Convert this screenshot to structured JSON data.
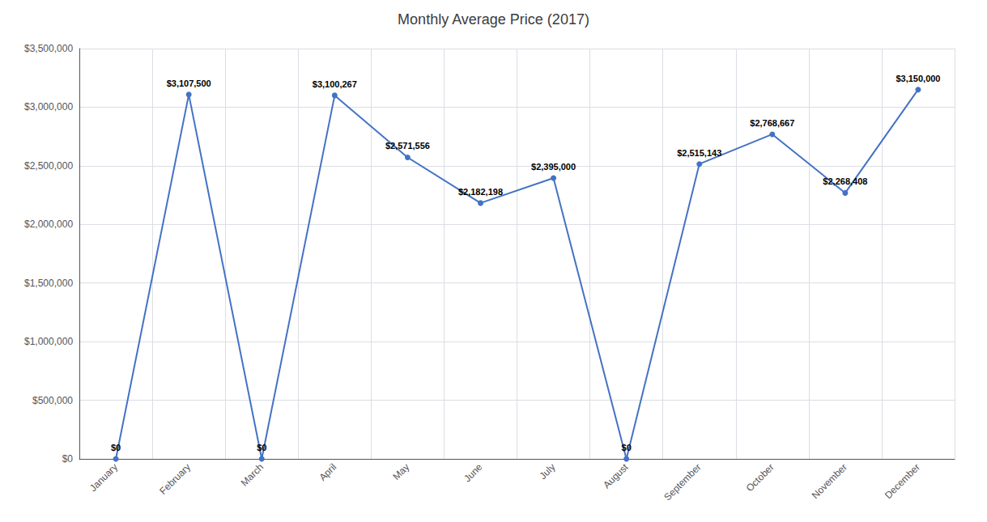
{
  "chart_data": {
    "type": "line",
    "title": "Monthly Average Price (2017)",
    "categories": [
      "January",
      "February",
      "March",
      "April",
      "May",
      "June",
      "July",
      "August",
      "September",
      "October",
      "November",
      "December"
    ],
    "values": [
      0,
      3107500,
      0,
      3100267,
      2571556,
      2182198,
      2395000,
      0,
      2515143,
      2768667,
      2268408,
      3150000
    ],
    "value_labels": [
      "$0",
      "$3,107,500",
      "$0",
      "$3,100,267",
      "$2,571,556",
      "$2,182,198",
      "$2,395,000",
      "$0",
      "$2,515,143",
      "$2,768,667",
      "$2,268,408",
      "$3,150,000"
    ],
    "data_labels": true,
    "color": "#4472C4",
    "marker": "circle",
    "ylim": [
      0,
      3500000
    ],
    "yticks": [
      {
        "value": 0,
        "label": "$0"
      },
      {
        "value": 500000,
        "label": "$500,000"
      },
      {
        "value": 1000000,
        "label": "$1,000,000"
      },
      {
        "value": 1500000,
        "label": "$1,500,000"
      },
      {
        "value": 2000000,
        "label": "$2,000,000"
      },
      {
        "value": 2500000,
        "label": "$2,500,000"
      },
      {
        "value": 3000000,
        "label": "$3,000,000"
      },
      {
        "value": 3500000,
        "label": "$3,500,000"
      }
    ],
    "grid": true
  }
}
